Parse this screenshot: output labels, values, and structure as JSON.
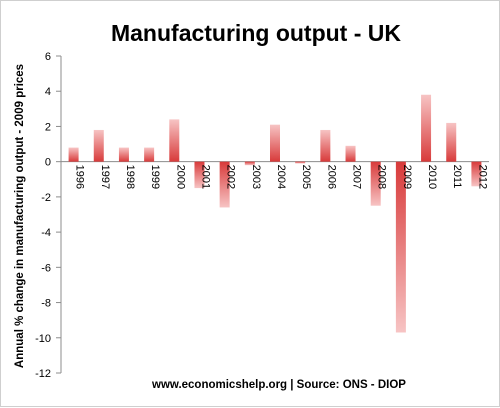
{
  "chart_data": {
    "type": "bar",
    "title": "Manufacturing output - UK",
    "ylabel": "Annual % change in manufacturing output - 2009 prices",
    "xlabel": "",
    "source": "www.economicshelp.org | Source: ONS - DIOP",
    "ylim": [
      -12,
      6
    ],
    "yticks": [
      "6",
      "4",
      "2",
      "0",
      "-2",
      "-4",
      "-6",
      "-8",
      "-10",
      "-12"
    ],
    "grid": false,
    "legend": "none",
    "categories": [
      "1996",
      "1997",
      "1998",
      "1999",
      "2000",
      "2001",
      "2002",
      "2003",
      "2004",
      "2005",
      "2006",
      "2007",
      "2008",
      "2009",
      "2010",
      "2011",
      "2012"
    ],
    "values": [
      0.8,
      1.8,
      0.8,
      0.8,
      2.4,
      -1.5,
      -2.6,
      -0.2,
      2.1,
      -0.1,
      1.8,
      0.9,
      -2.5,
      -9.7,
      3.8,
      2.2,
      -1.4
    ],
    "colors": {
      "bar_light": "#f7c4c4",
      "bar_dark": "#d83a3a",
      "axis": "#8c8c8c"
    }
  }
}
